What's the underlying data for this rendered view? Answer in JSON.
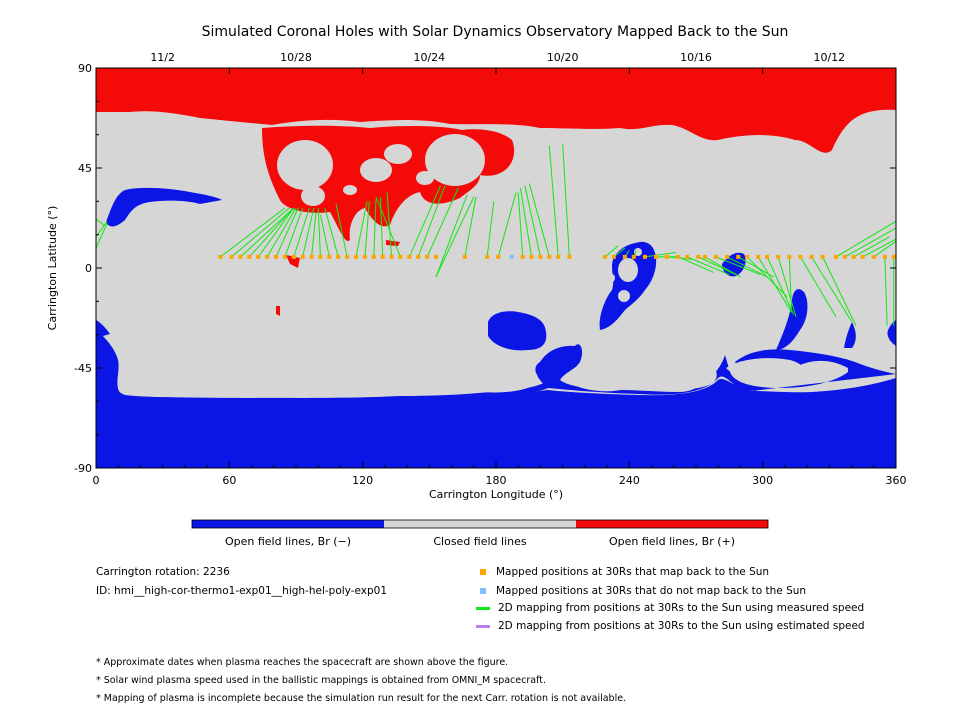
{
  "title": "Simulated Coronal Holes with Solar Dynamics Observatory Mapped Back to the Sun",
  "colors": {
    "open_neg": "#0b16e6",
    "closed": "#d6d6d6",
    "open_pos": "#f50a0a",
    "mapped": "#ffa500",
    "not_mapped": "#7fbfff",
    "measured": "#14e614",
    "estimated": "#b980e8"
  },
  "colorbar": {
    "labels": [
      "Open field lines, Br (−)",
      "Closed field lines",
      "Open field lines, Br (+)"
    ]
  },
  "info": {
    "rotation": "Carrington rotation: 2236",
    "id": "ID: hmi__high-cor-thermo1-exp01__high-hel-poly-exp01"
  },
  "legend": [
    {
      "type": "square",
      "color": "mapped",
      "label": "Mapped positions at 30Rs that map back to the Sun"
    },
    {
      "type": "square",
      "color": "not_mapped",
      "label": "Mapped positions at 30Rs that do not map back to the Sun"
    },
    {
      "type": "line",
      "color": "measured",
      "label": "2D mapping from positions at 30Rs to the Sun using measured speed"
    },
    {
      "type": "line",
      "color": "estimated",
      "label": "2D mapping from positions at 30Rs to the Sun using estimated speed"
    }
  ],
  "notes": [
    "* Approximate dates when plasma reaches the spacecraft are shown above the figure.",
    "* Solar wind plasma speed used in the ballistic mappings is obtained from OMNI_M spacecraft.",
    "* Mapping of plasma is incomplete because the simulation run result for the next Carr. rotation is not available."
  ],
  "chart_data": {
    "type": "scatter",
    "title": "Simulated Coronal Holes with Solar Dynamics Observatory Mapped Back to the Sun",
    "xlabel": "Carrington Longitude (°)",
    "ylabel": "Carrington Latitude (°)",
    "xlim": [
      0,
      360
    ],
    "ylim": [
      -90,
      90
    ],
    "xticks": [
      0,
      60,
      120,
      180,
      240,
      300,
      360
    ],
    "yticks": [
      -90,
      -45,
      0,
      45,
      90
    ],
    "top_axis_dates": [
      {
        "label": "11/2",
        "lon": 30
      },
      {
        "label": "10/28",
        "lon": 90
      },
      {
        "label": "10/24",
        "lon": 150
      },
      {
        "label": "10/20",
        "lon": 210
      },
      {
        "label": "10/16",
        "lon": 270
      },
      {
        "label": "10/12",
        "lon": 330
      }
    ],
    "mapped_points": {
      "lat": 5,
      "lon": [
        56,
        61,
        65,
        69,
        73,
        77,
        81,
        85,
        89,
        93,
        97,
        101,
        105,
        109,
        113,
        117,
        121,
        125,
        129,
        133,
        137,
        141,
        145,
        149,
        153,
        166,
        176,
        181,
        192,
        196,
        200,
        204,
        208,
        213,
        229,
        233,
        238,
        242,
        247,
        252,
        257,
        262,
        266,
        271,
        274,
        279,
        284,
        289,
        293,
        298,
        302,
        307,
        312,
        317,
        322,
        327,
        333,
        337,
        341,
        345,
        350,
        355,
        359
      ]
    },
    "not_mapped_points": {
      "lat": 5,
      "lon": [
        187
      ]
    },
    "mapping_lines_measured": [
      [
        56,
        5,
        85,
        27
      ],
      [
        61,
        5,
        87,
        27
      ],
      [
        65,
        5,
        89,
        27
      ],
      [
        69,
        5,
        88,
        26
      ],
      [
        73,
        5,
        89,
        27
      ],
      [
        77,
        5,
        90,
        27
      ],
      [
        81,
        5,
        91,
        27
      ],
      [
        85,
        5,
        93,
        27
      ],
      [
        89,
        5,
        96,
        27
      ],
      [
        93,
        5,
        98,
        27
      ],
      [
        97,
        5,
        99,
        25
      ],
      [
        101,
        5,
        100,
        27
      ],
      [
        105,
        5,
        101,
        24
      ],
      [
        109,
        5,
        103,
        27
      ],
      [
        113,
        5,
        108,
        29
      ],
      [
        117,
        5,
        122,
        30
      ],
      [
        121,
        5,
        123,
        30
      ],
      [
        125,
        5,
        126,
        31
      ],
      [
        129,
        5,
        128,
        32
      ],
      [
        133,
        5,
        131,
        34
      ],
      [
        137,
        5,
        126,
        32
      ],
      [
        141,
        5,
        155,
        37
      ],
      [
        145,
        5,
        157,
        37
      ],
      [
        149,
        5,
        163,
        36
      ],
      [
        153,
        -4,
        167,
        33
      ],
      [
        153,
        -4,
        170,
        32
      ],
      [
        166,
        5,
        171,
        32
      ],
      [
        176,
        5,
        179,
        30
      ],
      [
        181,
        5,
        189,
        34
      ],
      [
        192,
        5,
        190,
        34
      ],
      [
        196,
        5,
        191,
        36
      ],
      [
        200,
        5,
        193,
        37
      ],
      [
        204,
        5,
        195,
        38
      ],
      [
        208,
        5,
        204,
        55
      ],
      [
        213,
        5,
        210,
        56
      ],
      [
        229,
        5,
        235,
        10
      ],
      [
        233,
        5,
        238,
        9
      ],
      [
        238,
        5,
        240,
        8
      ],
      [
        242,
        5,
        243,
        8
      ],
      [
        247,
        5,
        261,
        7
      ],
      [
        252,
        5,
        262,
        5
      ],
      [
        257,
        5,
        268,
        4
      ],
      [
        262,
        5,
        278,
        -2
      ],
      [
        266,
        5,
        285,
        -3
      ],
      [
        271,
        5,
        288,
        -3
      ],
      [
        274,
        5,
        290,
        -4
      ],
      [
        279,
        5,
        299,
        -3
      ],
      [
        284,
        5,
        302,
        -4
      ],
      [
        289,
        5,
        305,
        -4
      ],
      [
        293,
        5,
        311,
        -13
      ],
      [
        298,
        5,
        313,
        -20
      ],
      [
        302,
        5,
        314,
        -21
      ],
      [
        307,
        5,
        315,
        -22
      ],
      [
        312,
        5,
        313,
        -20
      ],
      [
        317,
        5,
        333,
        -22
      ],
      [
        322,
        5,
        340,
        -24
      ],
      [
        327,
        5,
        342,
        -26
      ],
      [
        333,
        5,
        360,
        21
      ],
      [
        337,
        5,
        360,
        18
      ],
      [
        341,
        5,
        357,
        14
      ],
      [
        345,
        5,
        360,
        13
      ],
      [
        350,
        5,
        360,
        12
      ],
      [
        355,
        5,
        356,
        -26
      ],
      [
        359,
        5,
        359,
        -26
      ],
      [
        0,
        9,
        5,
        20
      ],
      [
        0,
        14,
        5,
        21
      ],
      [
        0,
        22,
        4,
        19
      ]
    ],
    "mapping_lines_estimated": [],
    "colorbar_categories": [
      "Open field lines, Br (−)",
      "Closed field lines",
      "Open field lines, Br (+)"
    ]
  }
}
